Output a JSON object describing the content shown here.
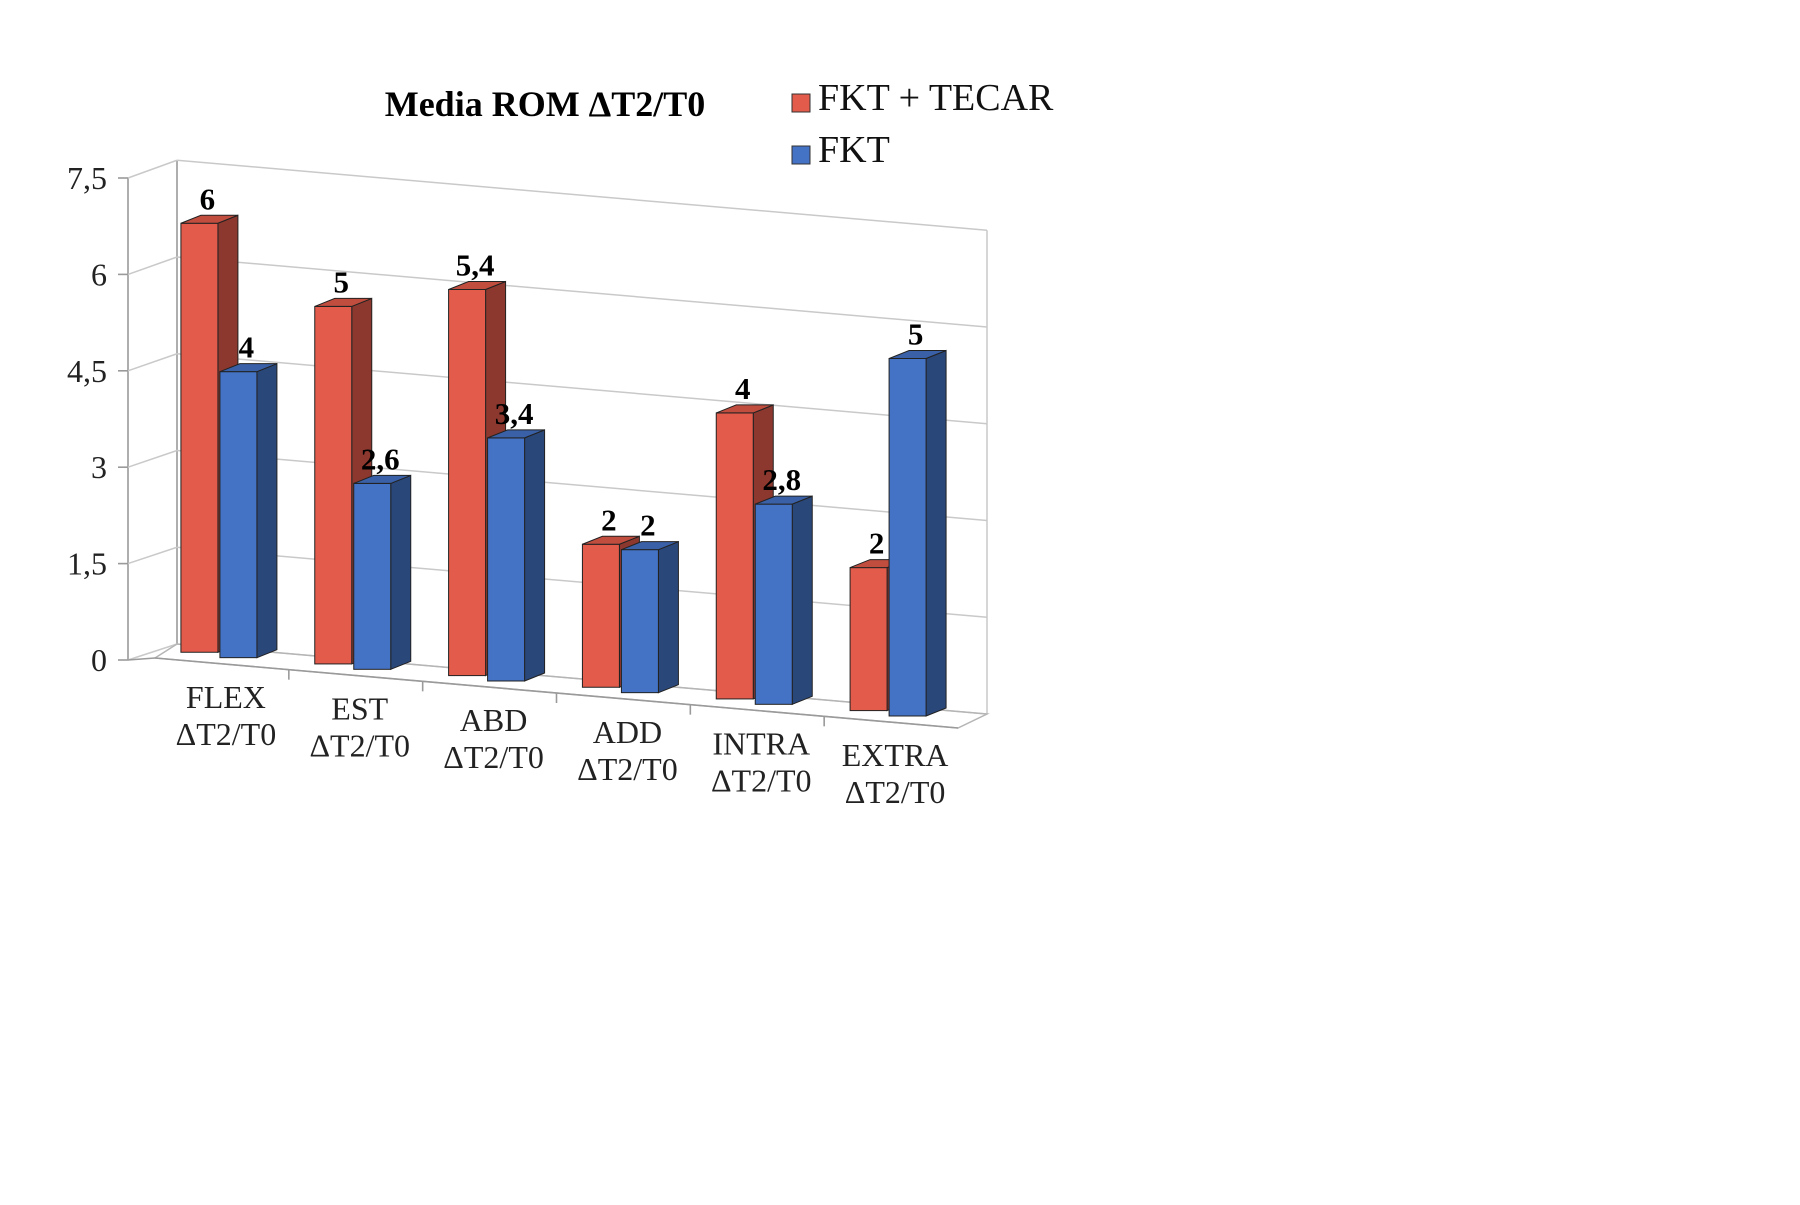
{
  "chart_data": {
    "type": "bar",
    "variant": "3d-clustered-column",
    "title": "Media ROM ΔT2/T0",
    "categories": [
      [
        "FLEX",
        "ΔT2/T0"
      ],
      [
        "EST",
        "ΔT2/T0"
      ],
      [
        "ABD",
        "ΔT2/T0"
      ],
      [
        "ADD",
        "ΔT2/T0"
      ],
      [
        "INTRA",
        "ΔT2/T0"
      ],
      [
        "EXTRA",
        "ΔT2/T0"
      ]
    ],
    "series": [
      {
        "name": "FKT + TECAR",
        "color": "#E35B4A",
        "values": [
          6,
          5,
          5.4,
          2,
          4,
          2
        ],
        "labels": [
          "6",
          "5",
          "5,4",
          "2",
          "4",
          "2"
        ]
      },
      {
        "name": "FKT",
        "color": "#4472C4",
        "values": [
          4,
          2.6,
          3.4,
          2,
          2.8,
          5
        ],
        "labels": [
          "4",
          "2,6",
          "3,4",
          "2",
          "2,8",
          "5"
        ]
      }
    ],
    "yticks": [
      "0",
      "1,5",
      "3",
      "4,5",
      "6",
      "7,5"
    ],
    "ytick_values": [
      0,
      1.5,
      3,
      4.5,
      6,
      7.5
    ],
    "ylim": [
      0,
      7.5
    ],
    "grid": true,
    "legend_position": "top-right",
    "xlabel": "",
    "ylabel": ""
  }
}
